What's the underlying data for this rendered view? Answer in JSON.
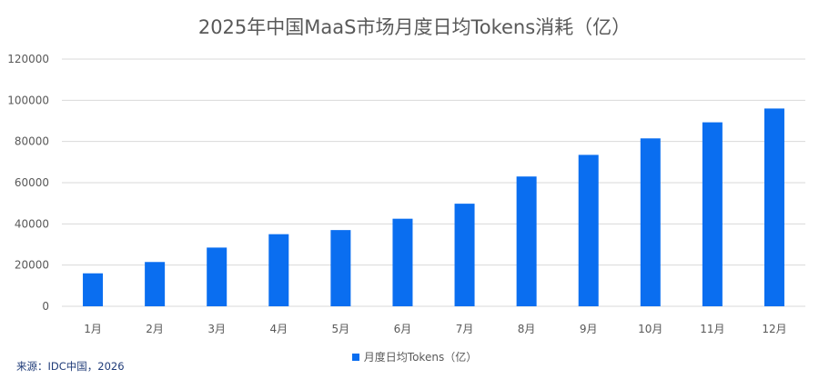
{
  "chart_data": {
    "type": "bar",
    "title": "2025年中国MaaS市场月度日均Tokens消耗（亿）",
    "categories": [
      "1月",
      "2月",
      "3月",
      "4月",
      "5月",
      "6月",
      "7月",
      "8月",
      "9月",
      "10月",
      "11月",
      "12月"
    ],
    "series": [
      {
        "name": "月度日均Tokens（亿）",
        "values": [
          16000,
          21500,
          28500,
          35000,
          37000,
          42500,
          49800,
          63000,
          73500,
          81500,
          89300,
          96000
        ]
      }
    ],
    "ylim": [
      0,
      120000
    ],
    "yticks": [
      0,
      20000,
      40000,
      60000,
      80000,
      100000,
      120000
    ],
    "grid": true,
    "legend": "bottom",
    "bar_color": "#0a6ef0",
    "grid_color": "#d9d9d9"
  },
  "source": "来源：IDC中国，2026"
}
